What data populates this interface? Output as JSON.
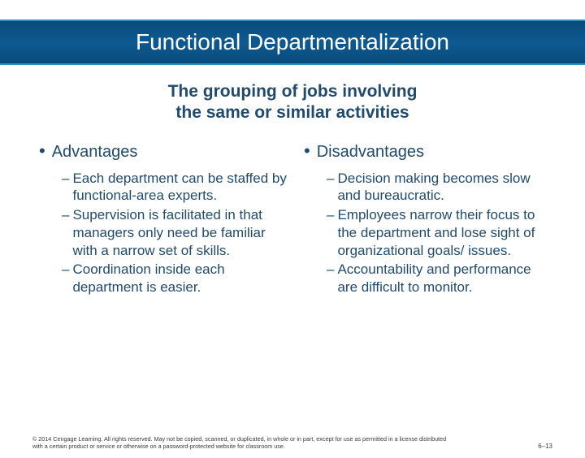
{
  "colors": {
    "banner_gradient_top": "#0a4a7a",
    "banner_gradient_mid": "#0d5a91",
    "banner_border": "#2b8fbf",
    "text_primary": "#204b6e",
    "footer_text": "#3a3a3a",
    "background": "#ffffff"
  },
  "typography": {
    "title_fontsize": 28,
    "subtitle_fontsize": 21,
    "heading_fontsize": 20,
    "point_fontsize": 17,
    "footer_fontsize": 7.2
  },
  "banner": {
    "title": "Functional Departmentalization"
  },
  "subtitle": {
    "line1": "The grouping of jobs involving",
    "line2": "the same or similar activities"
  },
  "left": {
    "heading": "Advantages",
    "points": [
      "Each department can be staffed by functional-area experts.",
      "Supervision is facilitated in that managers only need be familiar with a narrow set of skills.",
      "Coordination inside each department is easier."
    ]
  },
  "right": {
    "heading": "Disadvantages",
    "points": [
      "Decision making becomes slow and bureaucratic.",
      "Employees narrow their focus to the department and lose sight of organizational goals/ issues.",
      "Accountability and performance are difficult to monitor."
    ]
  },
  "footer": {
    "copyright": "© 2014 Cengage Learning. All rights reserved. May not be copied, scanned, or duplicated, in whole or in part, except for use as permitted in a license distributed with a certain product or service or otherwise on a password-protected website for classroom use.",
    "pagenum": "6–13"
  }
}
